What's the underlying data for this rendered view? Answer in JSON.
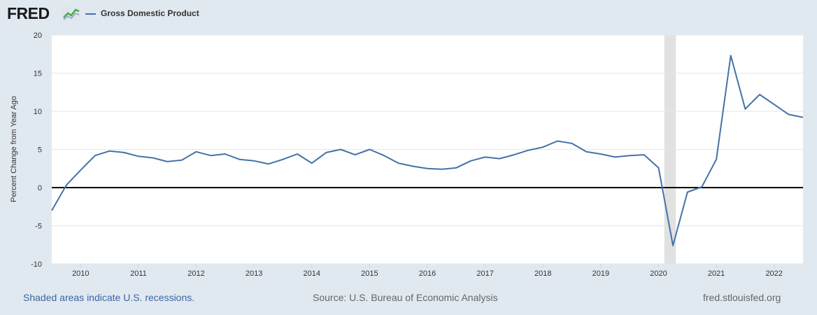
{
  "header": {
    "logo_text": "FRED",
    "logo_icon": "line-chart-icon",
    "legend_label": "Gross Domestic Product"
  },
  "footer": {
    "recession_note": "Shaded areas indicate U.S. recessions.",
    "source": "Source: U.S. Bureau of Economic Analysis",
    "url": "fred.stlouisfed.org"
  },
  "colors": {
    "series": "#4572a7",
    "recession": "#e1e1e1",
    "zero_line": "#000000",
    "page_bg": "#e1e9f0"
  },
  "chart_data": {
    "type": "line",
    "title": "",
    "xlabel": "",
    "ylabel": "Percent Change from Year Ago",
    "ylim": [
      -10,
      20
    ],
    "yticks": [
      -10,
      -5,
      0,
      5,
      10,
      15,
      20
    ],
    "xlim": [
      2009.5,
      2022.5
    ],
    "xticks": [
      2010,
      2011,
      2012,
      2013,
      2014,
      2015,
      2016,
      2017,
      2018,
      2019,
      2020,
      2021,
      2022
    ],
    "zero_line": true,
    "recessions": [
      [
        2020.1,
        2020.3
      ]
    ],
    "series": [
      {
        "name": "Gross Domestic Product",
        "x": [
          2009.5,
          2009.75,
          2010.0,
          2010.25,
          2010.5,
          2010.75,
          2011.0,
          2011.25,
          2011.5,
          2011.75,
          2012.0,
          2012.25,
          2012.5,
          2012.75,
          2013.0,
          2013.25,
          2013.5,
          2013.75,
          2014.0,
          2014.25,
          2014.5,
          2014.75,
          2015.0,
          2015.25,
          2015.5,
          2015.75,
          2016.0,
          2016.25,
          2016.5,
          2016.75,
          2017.0,
          2017.25,
          2017.5,
          2017.75,
          2018.0,
          2018.25,
          2018.5,
          2018.75,
          2019.0,
          2019.25,
          2019.5,
          2019.75,
          2020.0,
          2020.25,
          2020.5,
          2020.75,
          2021.0,
          2021.25,
          2021.5,
          2021.75,
          2022.0,
          2022.25,
          2022.5
        ],
        "values": [
          -3.0,
          0.3,
          2.3,
          4.2,
          4.8,
          4.6,
          4.1,
          3.9,
          3.4,
          3.6,
          4.7,
          4.2,
          4.4,
          3.7,
          3.5,
          3.1,
          3.7,
          4.4,
          3.2,
          4.6,
          5.0,
          4.3,
          5.0,
          4.2,
          3.2,
          2.8,
          2.5,
          2.4,
          2.6,
          3.5,
          4.0,
          3.8,
          4.3,
          4.9,
          5.3,
          6.1,
          5.8,
          4.7,
          4.4,
          4.0,
          4.2,
          4.3,
          2.6,
          -7.6,
          -0.6,
          0.1,
          3.7,
          17.3,
          10.3,
          12.2,
          10.9,
          9.6,
          9.2
        ]
      }
    ]
  }
}
